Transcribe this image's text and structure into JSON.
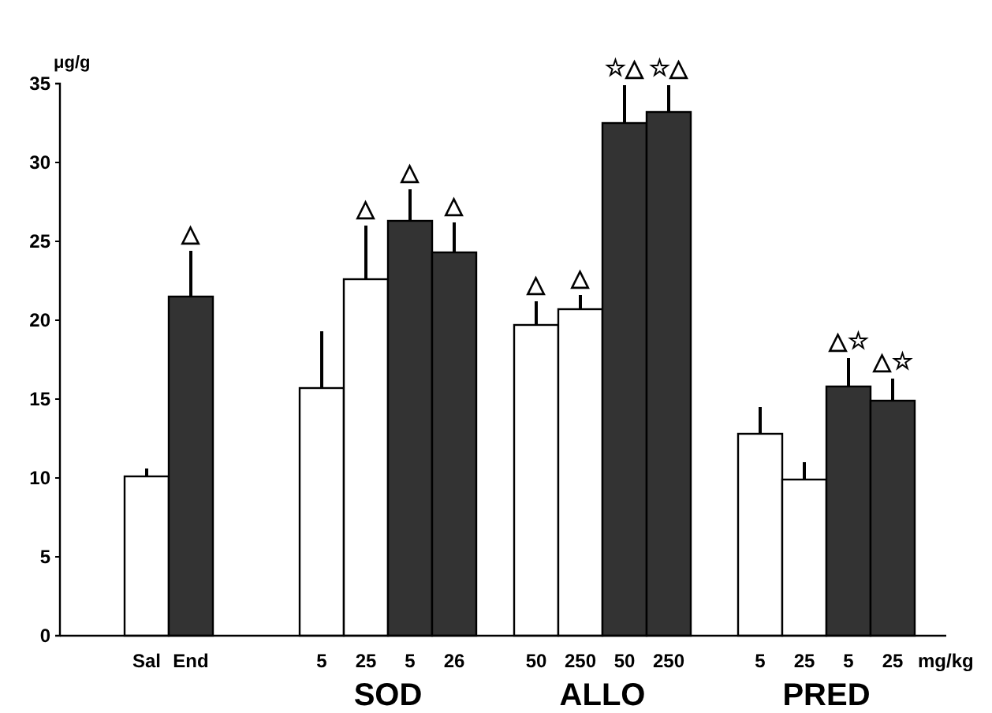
{
  "chart_data": {
    "type": "bar",
    "ylabel": "μg/g",
    "xlabel": "mg/kg",
    "categories": [
      "Sal",
      "End",
      "5",
      "25",
      "5",
      "26",
      "50",
      "250",
      "50",
      "250",
      "5",
      "25",
      "5",
      "25"
    ],
    "values": [
      10.1,
      21.5,
      15.7,
      22.6,
      26.3,
      24.3,
      19.7,
      20.7,
      32.5,
      33.2,
      12.8,
      9.9,
      15.8,
      14.9
    ],
    "colors": [
      "#ffffff",
      "#333333",
      "#ffffff",
      "#ffffff",
      "#333333",
      "#333333",
      "#ffffff",
      "#ffffff",
      "#333333",
      "#333333",
      "#ffffff",
      "#ffffff",
      "#333333",
      "#333333"
    ],
    "errors": [
      [
        10.1,
        10.6
      ],
      [
        21.5,
        24.4
      ],
      [
        15.7,
        19.3
      ],
      [
        22.6,
        26.0
      ],
      [
        26.3,
        28.3
      ],
      [
        24.3,
        26.2
      ],
      [
        19.7,
        21.2
      ],
      [
        20.7,
        21.6
      ],
      [
        32.5,
        34.9
      ],
      [
        33.2,
        34.9
      ],
      [
        12.8,
        14.5
      ],
      [
        9.9,
        11.0
      ],
      [
        15.8,
        17.6
      ],
      [
        14.9,
        16.3
      ]
    ],
    "value_labels": [
      null,
      "△",
      null,
      "△",
      "△",
      "△",
      "△",
      "△",
      "☆△",
      "☆△",
      null,
      null,
      "△☆",
      "△☆"
    ],
    "annotations": [
      "SOD",
      "ALLO",
      "PRED"
    ],
    "ylim": [
      0,
      35
    ],
    "yticks": [
      0,
      5,
      10,
      15,
      20,
      25,
      30,
      35
    ],
    "grid": false
  }
}
